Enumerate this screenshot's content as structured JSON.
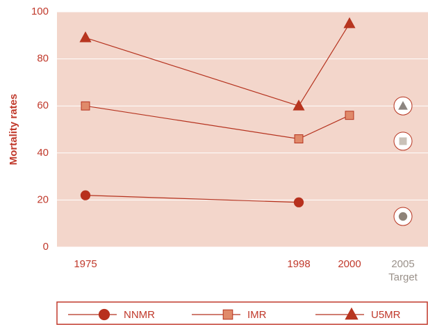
{
  "chart_data": {
    "type": "line",
    "y_label": "Mortality rates",
    "categories": [
      "1975",
      "1998",
      "2000",
      "2005"
    ],
    "target_label": "Target",
    "series": [
      {
        "name": "NNMR",
        "marker": "circle",
        "color": "#b8301d",
        "target_color": "#8e8378",
        "values": [
          22,
          19,
          null,
          13
        ]
      },
      {
        "name": "IMR",
        "marker": "square",
        "color": "#e08a6a",
        "target_color": "#c9c1b8",
        "values": [
          60,
          46,
          56,
          45
        ]
      },
      {
        "name": "U5MR",
        "marker": "triangle",
        "color": "#b83620",
        "target_color": "#8c8580",
        "values": [
          89,
          60,
          95,
          60
        ]
      }
    ],
    "ylim": [
      0,
      100
    ],
    "yticks": [
      0,
      20,
      40,
      60,
      80,
      100
    ],
    "grid": true
  }
}
